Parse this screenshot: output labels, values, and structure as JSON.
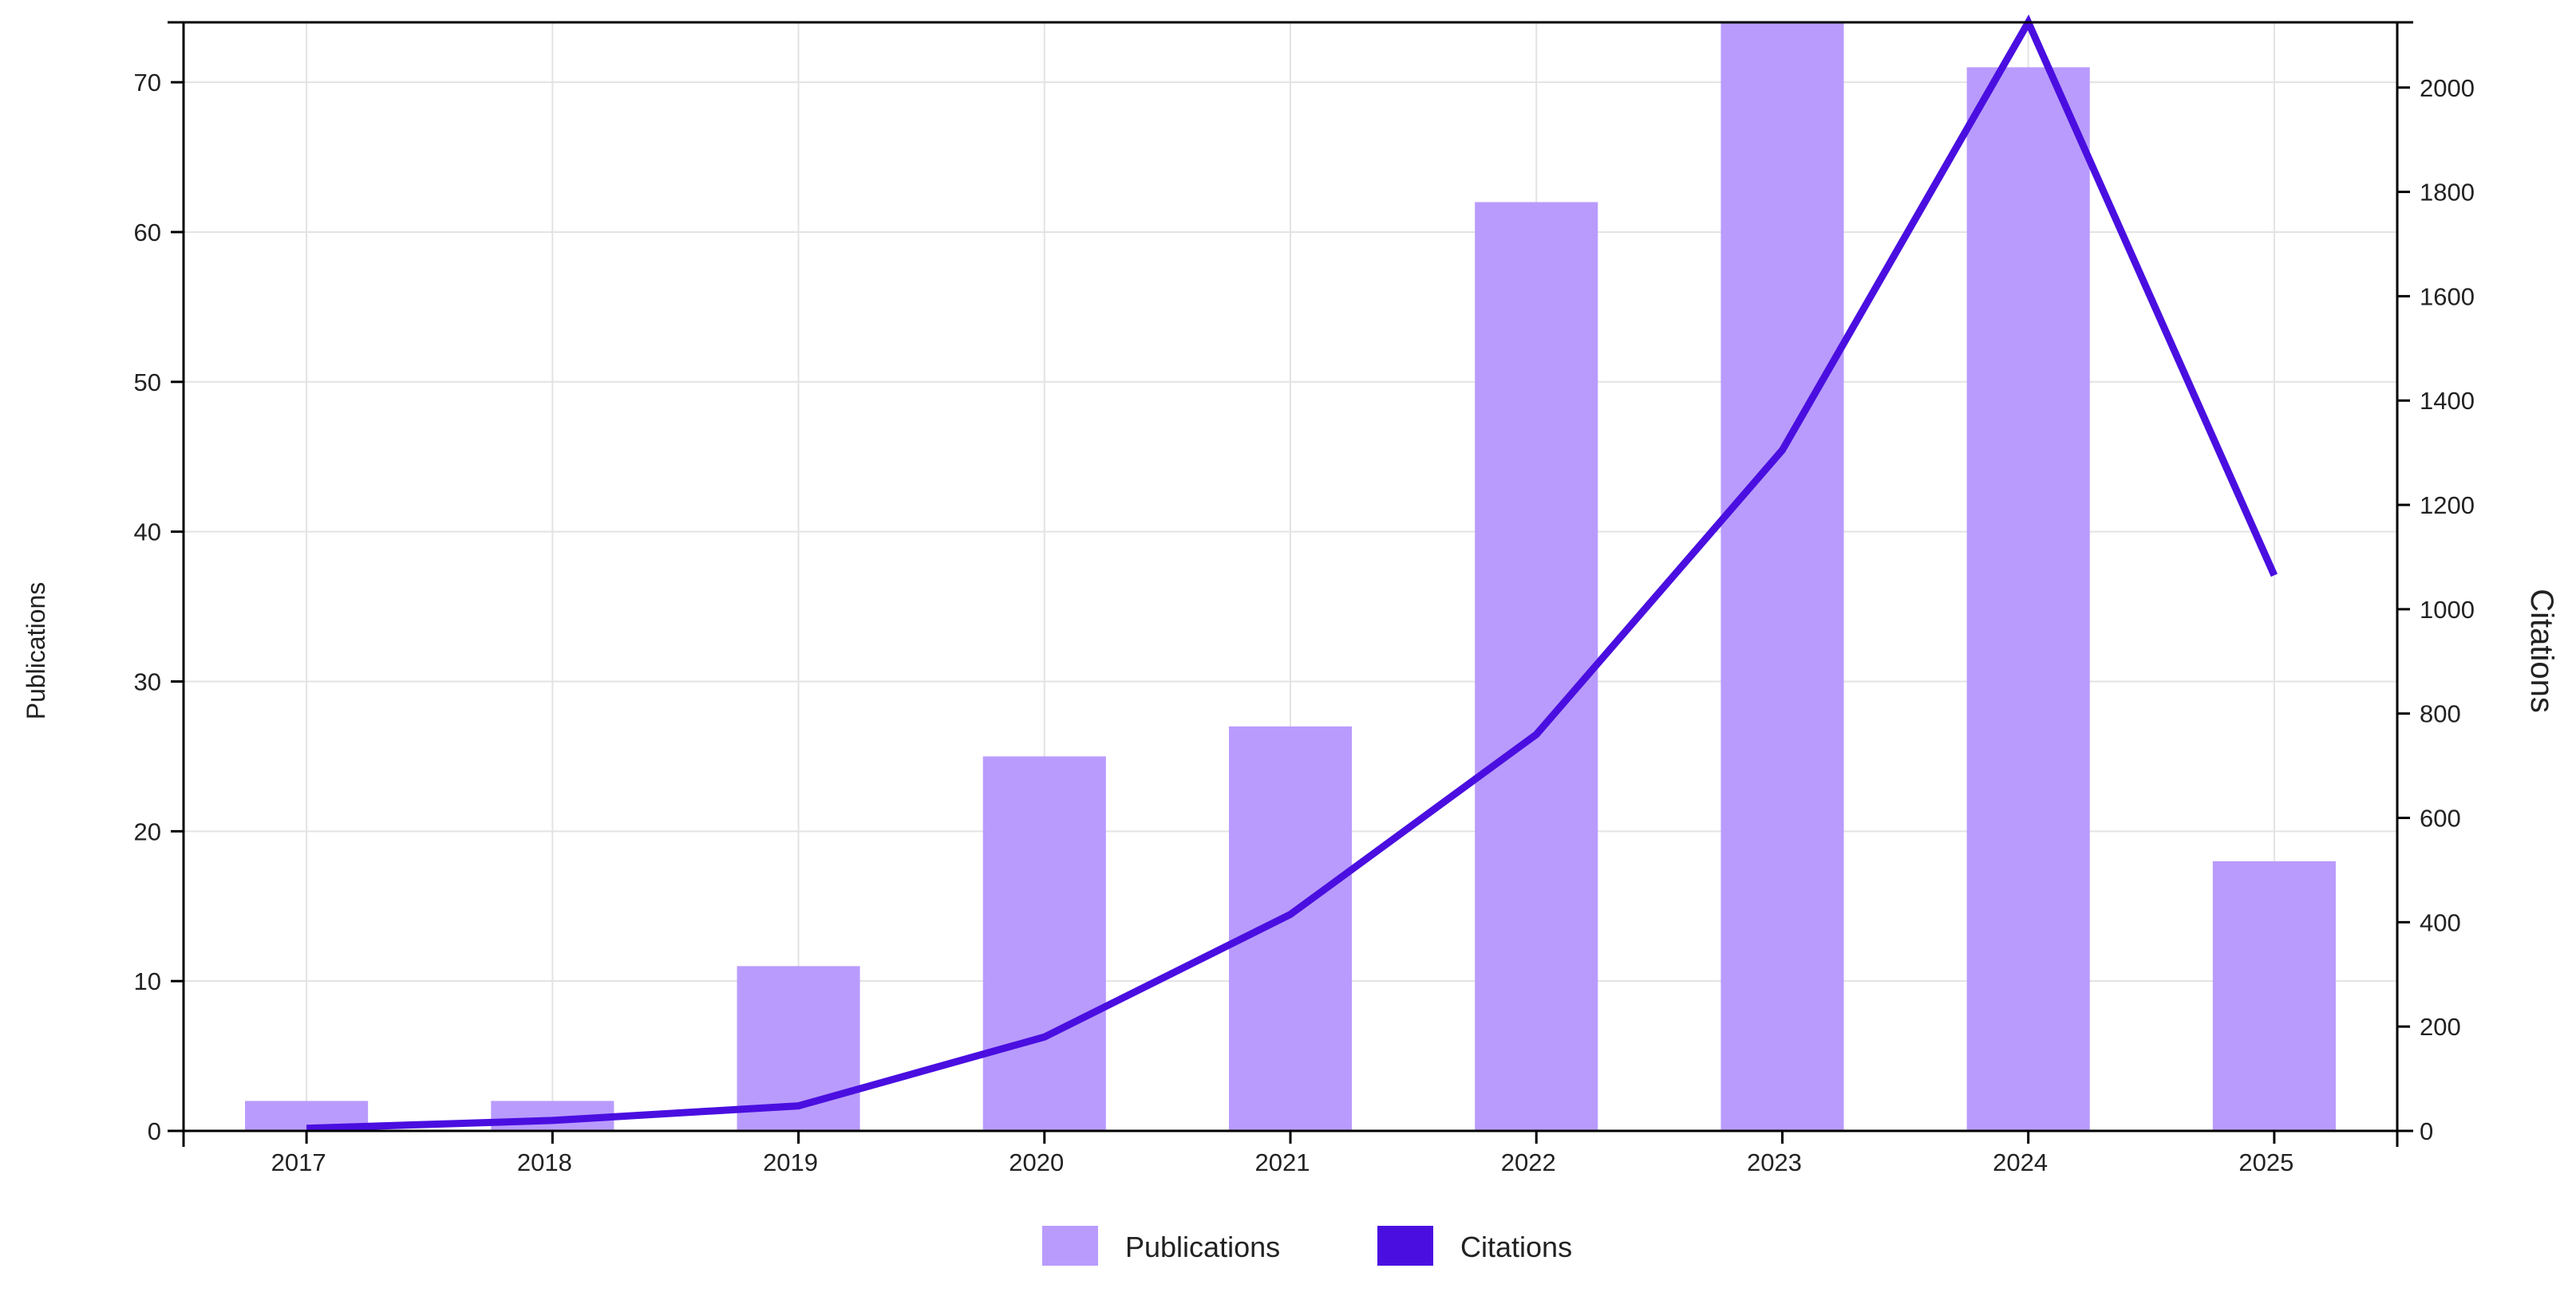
{
  "chart_data": {
    "type": "bar",
    "categories": [
      "2017",
      "2018",
      "2019",
      "2020",
      "2021",
      "2022",
      "2023",
      "2024",
      "2025"
    ],
    "series": [
      {
        "name": "Publications",
        "type": "bar",
        "axis": "left",
        "color": "#b99bfd",
        "values": [
          2,
          2,
          11,
          25,
          27,
          62,
          74,
          71,
          18
        ]
      },
      {
        "name": "Citations",
        "type": "line",
        "axis": "right",
        "color": "#4a0fe0",
        "values": [
          5,
          20,
          48,
          180,
          415,
          760,
          1305,
          2125,
          1065
        ]
      }
    ],
    "ylabel_left": "Publications",
    "ylabel_right": "Citations",
    "ylim_left": [
      0,
      74
    ],
    "ylim_right": [
      0,
      2125
    ],
    "yticks_left": [
      0,
      10,
      20,
      30,
      40,
      50,
      60,
      70
    ],
    "yticks_right": [
      0,
      200,
      400,
      600,
      800,
      1000,
      1200,
      1400,
      1600,
      1800,
      2000
    ],
    "grid": true,
    "legend_position": "bottom-center"
  }
}
